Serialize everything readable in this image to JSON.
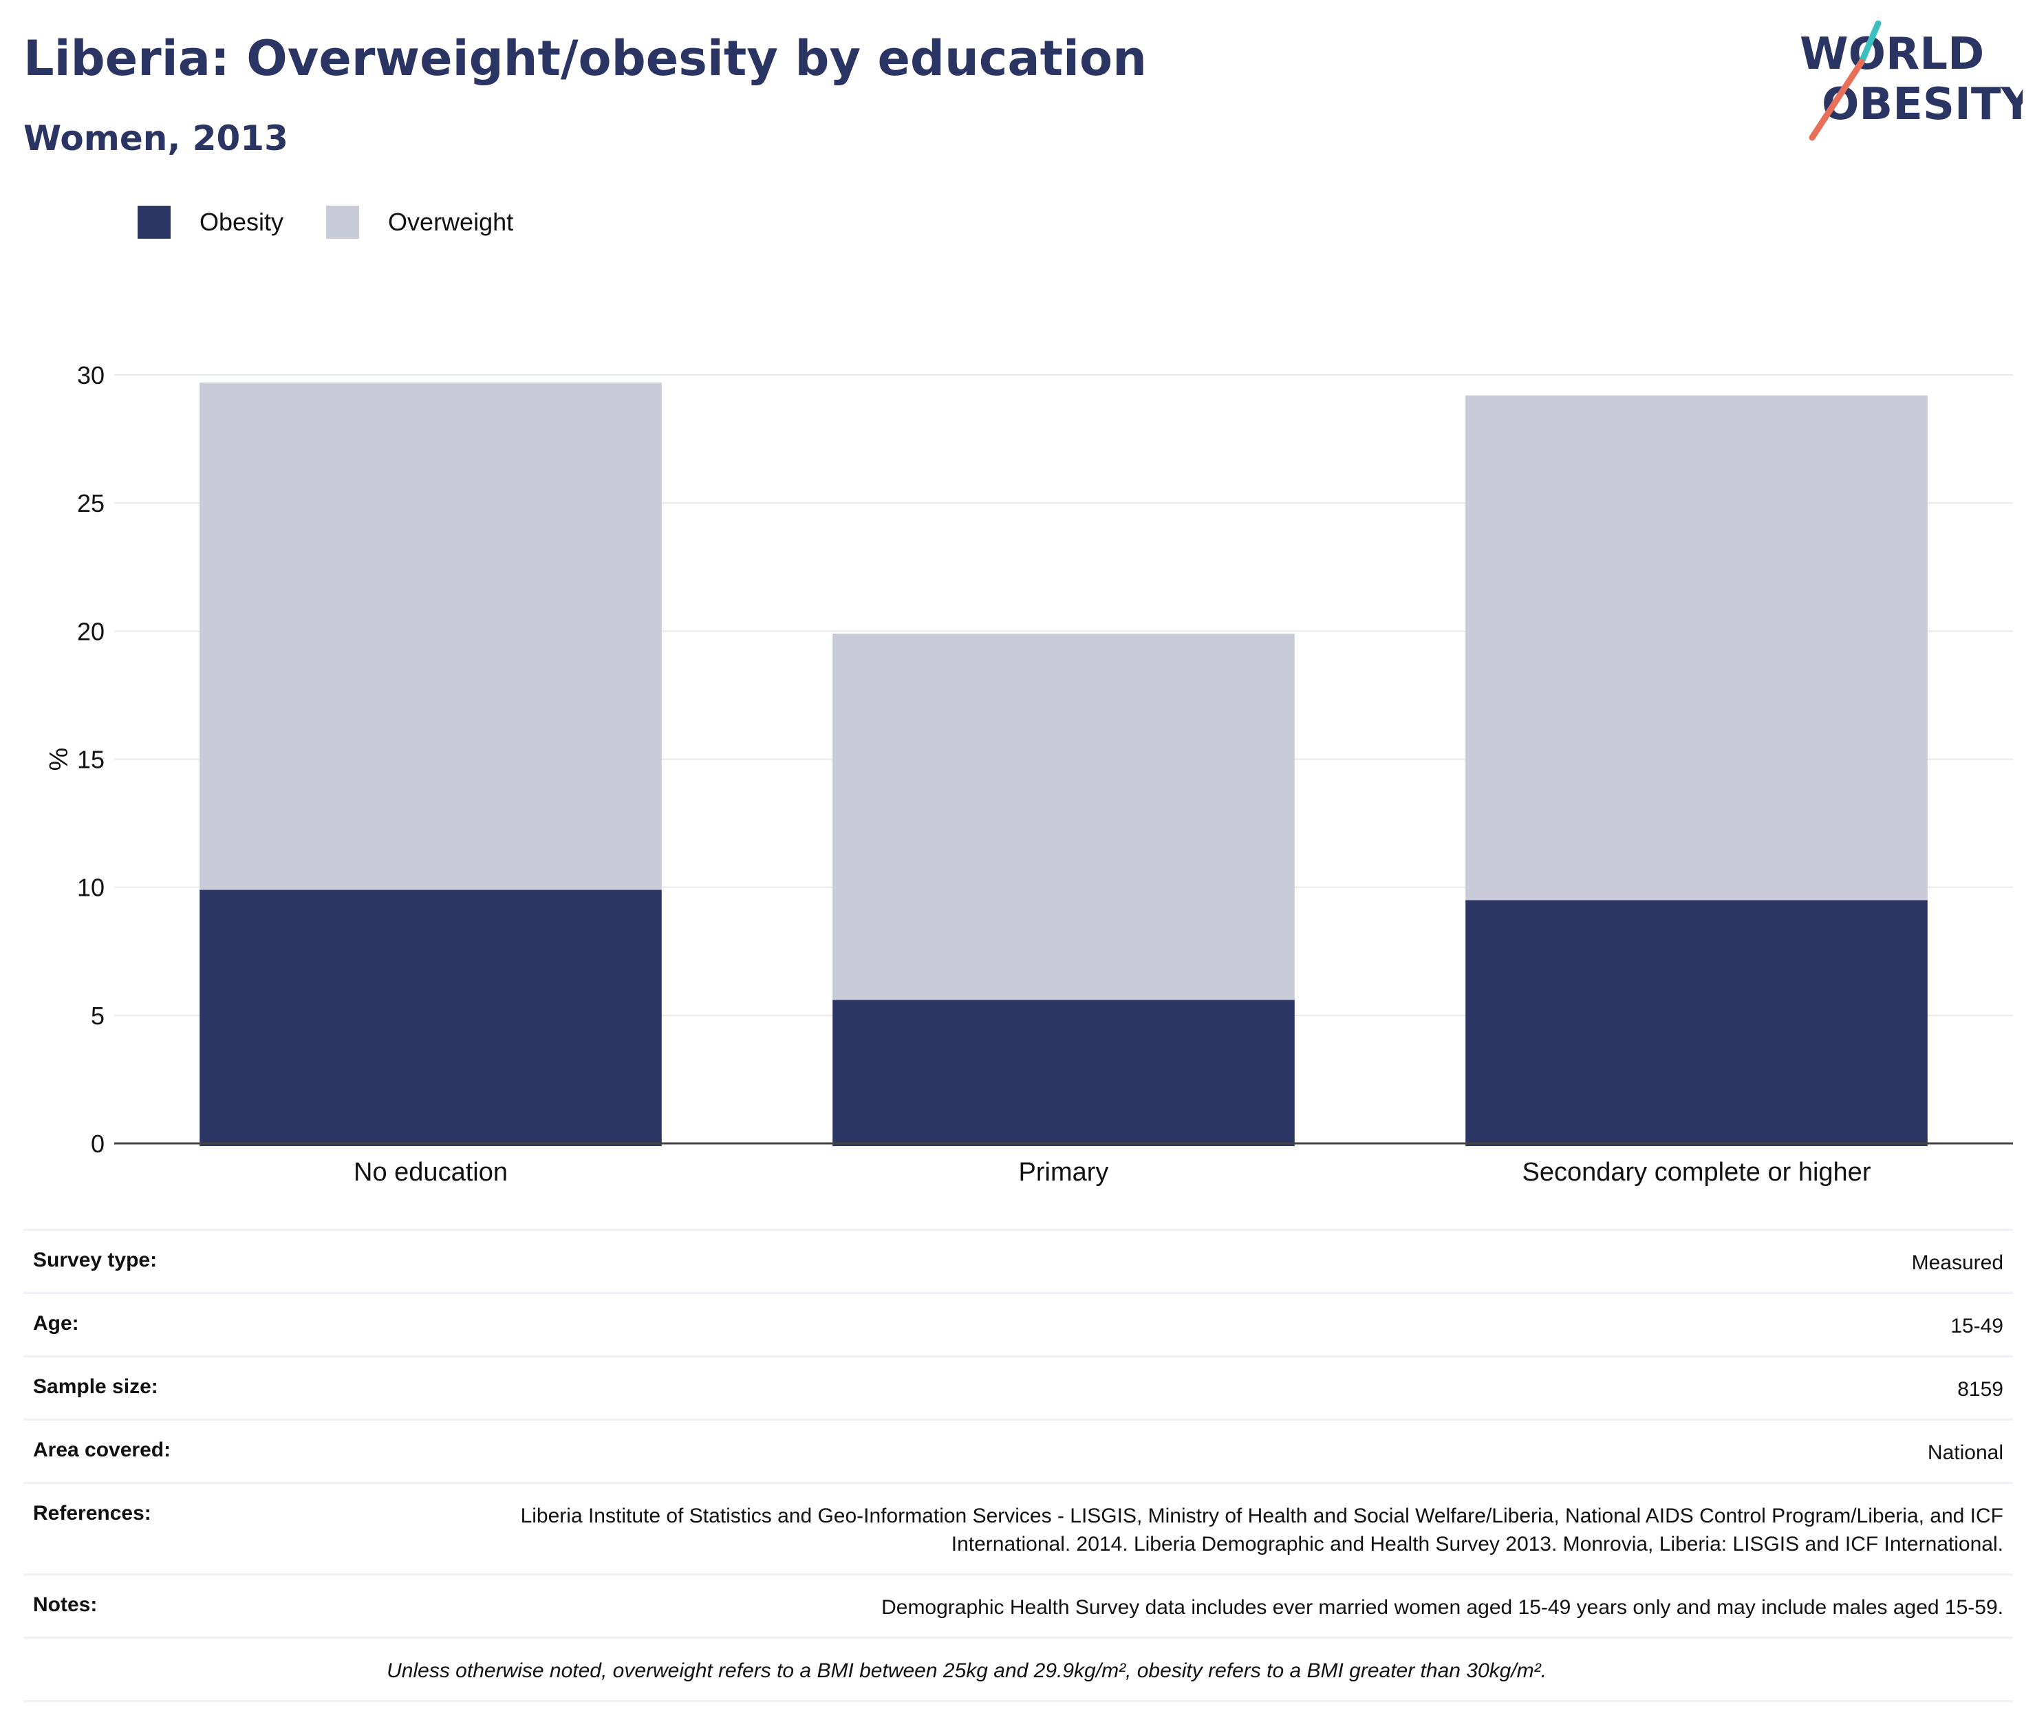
{
  "header": {
    "title": "Liberia: Overweight/obesity by education",
    "subtitle": "Women, 2013"
  },
  "logo": {
    "line1": "WORLD",
    "line2": "OBESITY",
    "accent_teal": "#3cbfbf",
    "accent_coral": "#e8705a"
  },
  "colors": {
    "obesity": "#2b3664",
    "overweight": "#c9ccd8",
    "text_primary": "#2b3563"
  },
  "chart_data": {
    "type": "bar",
    "stacked": true,
    "categories": [
      "No education",
      "Primary",
      "Secondary complete or higher"
    ],
    "series": [
      {
        "name": "Obesity",
        "values": [
          9.9,
          5.6,
          9.5
        ],
        "color": "#2b3664"
      },
      {
        "name": "Overweight",
        "values": [
          19.8,
          14.3,
          19.7
        ],
        "color": "#c9ccd8"
      }
    ],
    "ylabel": "%",
    "ylim": [
      0,
      30
    ],
    "yticks": [
      0,
      5,
      10,
      15,
      20,
      25,
      30
    ],
    "grid": true,
    "legend": "top-left"
  },
  "info": {
    "rows": [
      {
        "label": "Survey type:",
        "value": "Measured"
      },
      {
        "label": "Age:",
        "value": "15-49"
      },
      {
        "label": "Sample size:",
        "value": "8159"
      },
      {
        "label": "Area covered:",
        "value": "National"
      },
      {
        "label": "References:",
        "value": "Liberia Institute of Statistics and Geo-Information Services - LISGIS, Ministry of Health and Social Welfare/Liberia, National AIDS Control Program/Liberia, and ICF International. 2014. Liberia Demographic and Health Survey 2013. Monrovia, Liberia: LISGIS and ICF International."
      },
      {
        "label": "Notes:",
        "value": "Demographic Health Survey data includes ever married women aged 15-49 years only and may include males aged 15-59."
      }
    ],
    "footnote": "Unless otherwise noted, overweight refers to a BMI between 25kg and 29.9kg/m², obesity refers to a BMI greater than 30kg/m²."
  }
}
